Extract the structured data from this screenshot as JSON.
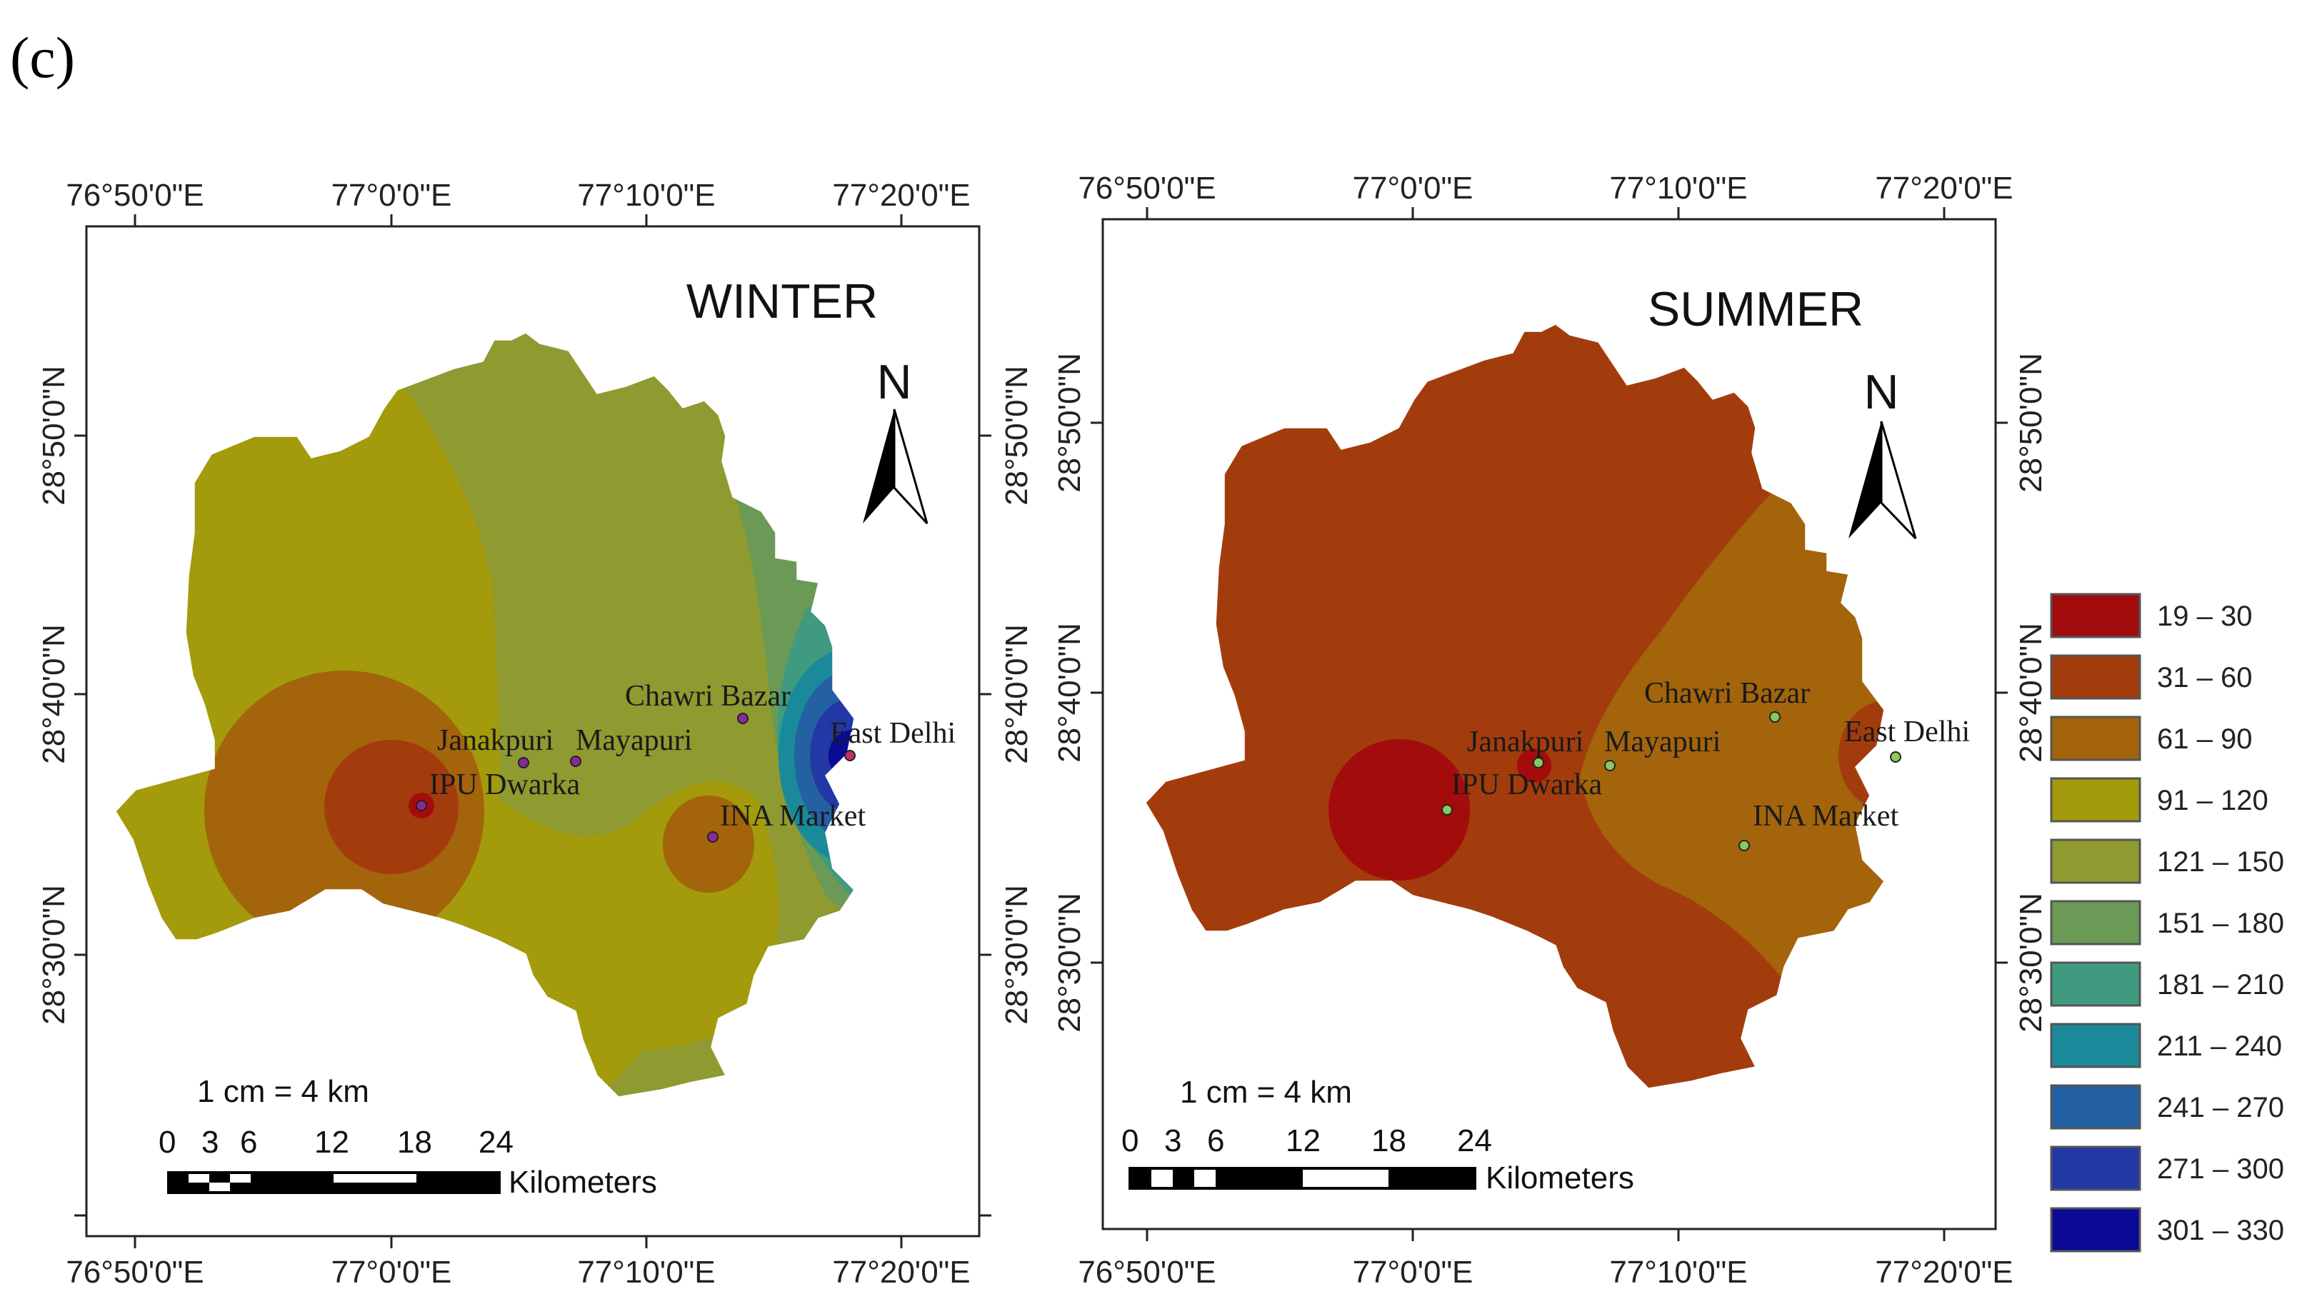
{
  "panel_label": "(c)",
  "lon_ticks": [
    "76°50'0\"E",
    "77°0'0\"E",
    "77°10'0\"E",
    "77°20'0\"E"
  ],
  "lat_ticks": [
    "28°50'0\"N",
    "28°40'0\"N",
    "28°30'0\"N"
  ],
  "maps": [
    {
      "title": "WINTER",
      "north": "N",
      "scale_text": "1 cm = 4 km",
      "scale_numbers": [
        "0",
        "3",
        "6",
        "12",
        "18",
        "24"
      ],
      "scale_unit": "Kilometers"
    },
    {
      "title": "SUMMER",
      "north": "N",
      "scale_text": "1 cm = 4 km",
      "scale_numbers": [
        "0",
        "3",
        "6",
        "12",
        "18",
        "24"
      ],
      "scale_unit": "Kilometers"
    }
  ],
  "sites": [
    "Chawri Bazar",
    "Janakpuri",
    "Mayapuri",
    "IPU Dwarka",
    "INA Market",
    "East Delhi"
  ],
  "legend": [
    {
      "label": "19 – 30",
      "color": "#a30c0c"
    },
    {
      "label": "31 – 60",
      "color": "#a33c0c"
    },
    {
      "label": "61 – 90",
      "color": "#a3640c"
    },
    {
      "label": "91 – 120",
      "color": "#a39a0c"
    },
    {
      "label": "121 – 150",
      "color": "#8f9a30"
    },
    {
      "label": "151 – 180",
      "color": "#6a9a55"
    },
    {
      "label": "181 – 210",
      "color": "#3f9a80"
    },
    {
      "label": "211 – 240",
      "color": "#1a8a9a"
    },
    {
      "label": "241 – 270",
      "color": "#2361a3"
    },
    {
      "label": "271 – 300",
      "color": "#2238a5"
    },
    {
      "label": "301 – 330",
      "color": "#0a0a96"
    }
  ]
}
